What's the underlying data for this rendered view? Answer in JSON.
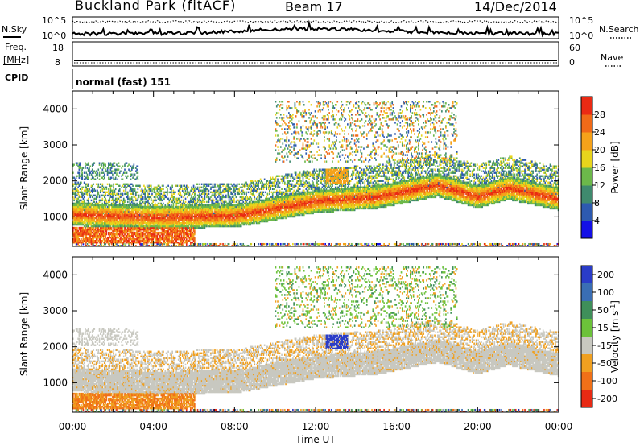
{
  "header": {
    "site": "Buckland Park (fitACF)",
    "beam": "Beam 17",
    "date": "14/Dec/2014"
  },
  "noise_panel": {
    "left_label": "N.Sky",
    "right_label": "N.Search",
    "left_ticks": [
      "10^5",
      "10^0"
    ],
    "right_ticks": [
      "10^5",
      "10^0"
    ]
  },
  "freq_panel": {
    "left_label_1": "Freq.",
    "left_label_2": "[MHz]",
    "right_label": "Nave",
    "left_ticks": [
      "18",
      "8"
    ],
    "right_ticks": [
      "60",
      "0"
    ]
  },
  "cpid": {
    "label": "CPID",
    "mode": "normal (fast) 151"
  },
  "x_axis": {
    "label": "Time UT",
    "ticks": [
      "00:00",
      "04:00",
      "08:00",
      "12:00",
      "16:00",
      "20:00",
      "00:00"
    ]
  },
  "chart_data": [
    {
      "type": "heatmap",
      "title": "",
      "xlabel": "Time UT",
      "ylabel": "Slant Range [km]",
      "xlim_hours_ut": [
        0,
        24
      ],
      "ylim_km": [
        180,
        4500
      ],
      "y_ticks": [
        1000,
        2000,
        3000,
        4000
      ],
      "colorbar": {
        "label": "Power [dB]",
        "ticks": [
          "4",
          "8",
          "12",
          "16",
          "20",
          "24",
          "28"
        ],
        "colors": [
          "#1410e6",
          "#2d5ab0",
          "#3f8a6e",
          "#6cb84a",
          "#e8d41c",
          "#f5a21a",
          "#f06a18",
          "#ea2a14"
        ]
      },
      "features": [
        {
          "name": "main_band",
          "time_hours": [
            0,
            24
          ],
          "slant_range_km": [
            900,
            1800
          ],
          "power_db_peak": 28
        },
        {
          "name": "low_band",
          "time_hours": [
            0,
            6
          ],
          "slant_range_km": [
            250,
            700
          ],
          "power_db_peak": 28
        },
        {
          "name": "upper_patch",
          "time_hours": [
            10,
            19
          ],
          "slant_range_km": [
            2500,
            4200
          ],
          "power_db_peak": 24
        }
      ]
    },
    {
      "type": "heatmap",
      "title": "",
      "xlabel": "Time UT",
      "ylabel": "Slant Range [km]",
      "xlim_hours_ut": [
        0,
        24
      ],
      "ylim_km": [
        180,
        4500
      ],
      "y_ticks": [
        1000,
        2000,
        3000,
        4000
      ],
      "colorbar": {
        "label": "Velocity [m s-1]",
        "ticks": [
          "200",
          "100",
          "50",
          "15",
          "-15",
          "-50",
          "-100",
          "-200"
        ],
        "colors": [
          "#2a3cc8",
          "#3a6eb4",
          "#3f8f5a",
          "#6cc23a",
          "#c8c8c0",
          "#f0a020",
          "#f07018",
          "#e82a14"
        ]
      },
      "features": [
        {
          "name": "ground_scatter",
          "time_hours": [
            0,
            24
          ],
          "slant_range_km": [
            500,
            2300
          ],
          "velocity_class": "-15 to 15"
        },
        {
          "name": "positive_patch",
          "time_hours": [
            12.5,
            13.5
          ],
          "slant_range_km": [
            1900,
            2300
          ],
          "velocity_class": "200"
        },
        {
          "name": "negative_scatter",
          "time_hours": [
            7,
            12
          ],
          "slant_range_km": [
            1200,
            2400
          ],
          "velocity_class": "-50"
        }
      ]
    }
  ]
}
